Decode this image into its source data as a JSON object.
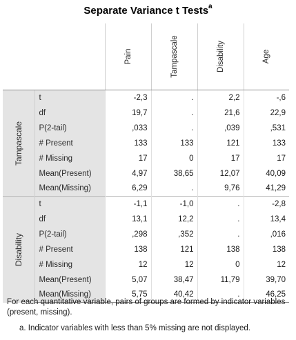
{
  "title": "Separate Variance t Tests",
  "title_superscript": "a",
  "columns": [
    "Pain",
    "Tampascale",
    "Disability",
    "Age"
  ],
  "groups": [
    {
      "name": "Tampascale",
      "rows": [
        {
          "label": "t",
          "values": [
            "-2,3",
            ".",
            "2,2",
            "-,6"
          ]
        },
        {
          "label": "df",
          "values": [
            "19,7",
            ".",
            "21,6",
            "22,9"
          ]
        },
        {
          "label": "P(2-tail)",
          "values": [
            ",033",
            ".",
            ",039",
            ",531"
          ]
        },
        {
          "label": "# Present",
          "values": [
            "133",
            "133",
            "121",
            "133"
          ]
        },
        {
          "label": "# Missing",
          "values": [
            "17",
            "0",
            "17",
            "17"
          ]
        },
        {
          "label": "Mean(Present)",
          "values": [
            "4,97",
            "38,65",
            "12,07",
            "40,09"
          ]
        },
        {
          "label": "Mean(Missing)",
          "values": [
            "6,29",
            ".",
            "9,76",
            "41,29"
          ]
        }
      ]
    },
    {
      "name": "Disability",
      "rows": [
        {
          "label": "t",
          "values": [
            "-1,1",
            "-1,0",
            ".",
            "-2,8"
          ]
        },
        {
          "label": "df",
          "values": [
            "13,1",
            "12,2",
            ".",
            "13,4"
          ]
        },
        {
          "label": "P(2-tail)",
          "values": [
            ",298",
            ",352",
            ".",
            ",016"
          ]
        },
        {
          "label": "# Present",
          "values": [
            "138",
            "121",
            "138",
            "138"
          ]
        },
        {
          "label": "# Missing",
          "values": [
            "12",
            "12",
            "0",
            "12"
          ]
        },
        {
          "label": "Mean(Present)",
          "values": [
            "5,07",
            "38,47",
            "11,79",
            "39,70"
          ]
        },
        {
          "label": "Mean(Missing)",
          "values": [
            "5,75",
            "40,42",
            ".",
            "46,25"
          ]
        }
      ]
    }
  ],
  "footnotes": {
    "main": "For each quantitative variable, pairs of groups are formed by indicator variables (present, missing).",
    "a": "a. Indicator variables with less than 5% missing are not displayed."
  }
}
